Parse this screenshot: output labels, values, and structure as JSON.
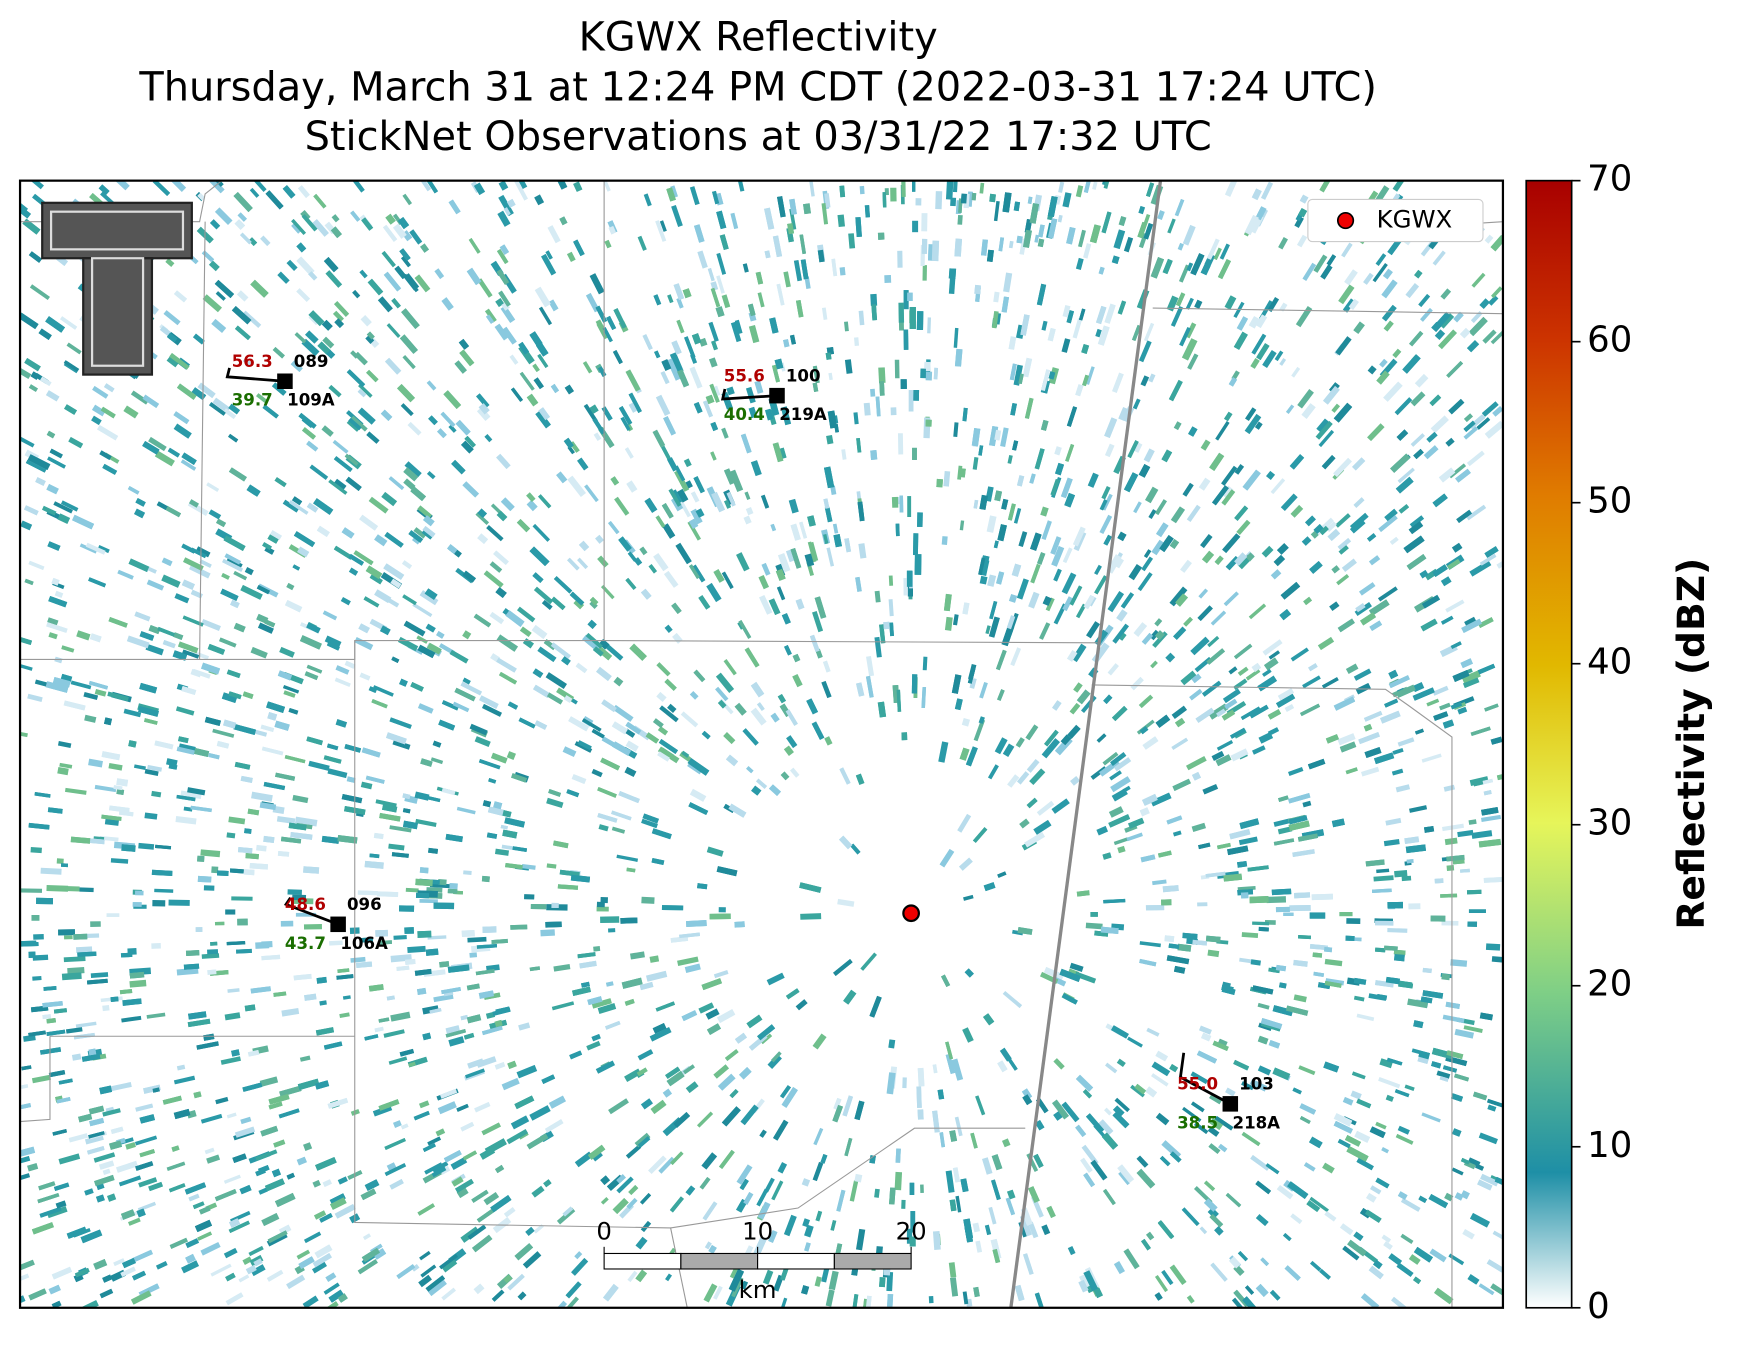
{
  "title": {
    "lines": [
      "KGWX Reflectivity",
      "Thursday, March 31 at 12:24 PM CDT (2022-03-31 17:24 UTC)",
      "StickNet Observations at 03/31/22 17:32 UTC"
    ]
  },
  "legend": {
    "label": "KGWX"
  },
  "colorbar": {
    "label": "Reflectivity (dBZ)",
    "lim": [
      0,
      70
    ],
    "ticks": [
      0,
      10,
      20,
      30,
      40,
      50,
      60,
      70
    ]
  },
  "scalebar": {
    "ticks": [
      0,
      10,
      20
    ],
    "unit": "km"
  },
  "stations": [
    {
      "temperature": "56.3",
      "dewpoint": "39.7",
      "value": "089",
      "id": "109A"
    },
    {
      "temperature": "55.6",
      "dewpoint": "40.4",
      "value": "100",
      "id": "219A"
    },
    {
      "temperature": "48.6",
      "dewpoint": "43.7",
      "value": "096",
      "id": "106A"
    },
    {
      "temperature": "55.0",
      "dewpoint": "38.5",
      "value": "103",
      "id": "218A"
    }
  ]
}
